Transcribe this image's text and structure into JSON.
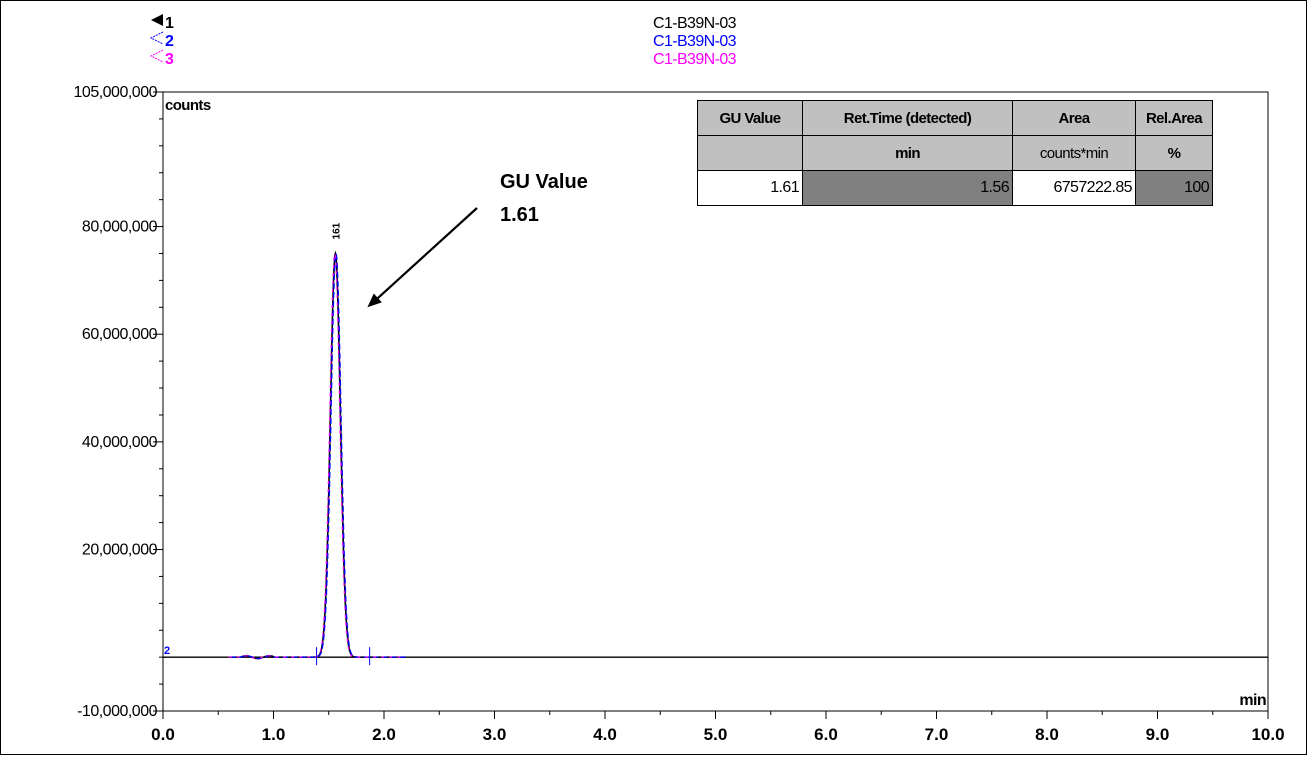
{
  "chart_data": {
    "type": "line",
    "x_unit": "min",
    "y_unit": "counts",
    "xlim": [
      0.0,
      10.0
    ],
    "ylim": [
      -10000000,
      105000000
    ],
    "x_ticks": [
      0,
      1,
      2,
      3,
      4,
      5,
      6,
      7,
      8,
      9,
      10
    ],
    "x_tick_labels": [
      "0.0",
      "1.0",
      "2.0",
      "3.0",
      "4.0",
      "5.0",
      "6.0",
      "7.0",
      "8.0",
      "9.0",
      "10.0"
    ],
    "y_ticks": [
      -10000000,
      20000000,
      40000000,
      60000000,
      80000000,
      105000000
    ],
    "y_tick_labels": [
      "-10,000,000",
      "20,000,000",
      "40,000,000",
      "60,000,000",
      "80,000,000",
      "105,000,000"
    ],
    "grid": false,
    "legend": [
      {
        "marker": "1",
        "name": "C1-B39N-03",
        "color": "#000000"
      },
      {
        "marker": "2",
        "name": "C1-B39N-03",
        "color": "#0000ff"
      },
      {
        "marker": "3",
        "name": "C1-B39N-03",
        "color": "#ff00ff"
      }
    ],
    "peak": {
      "x": 1.56,
      "y": 75000000,
      "label": "161",
      "start": 1.39,
      "end": 1.87
    },
    "baseline_y": 0,
    "annotation": {
      "line1": "GU Value",
      "line2": "1.61",
      "target_x": 1.85,
      "target_y": 65000000
    },
    "small_labels": [
      "2"
    ]
  },
  "table": {
    "headers": [
      "GU Value",
      "Ret.Time (detected)",
      "Area",
      "Rel.Area"
    ],
    "units": [
      "",
      "min",
      "counts*min",
      "%"
    ],
    "row": [
      "1.61",
      "1.56",
      "6757222.85",
      "100"
    ]
  },
  "colors": {
    "trace1": "#000000",
    "trace2": "#0000ff",
    "trace3": "#ff00ff",
    "header_bg": "#c0c0c0",
    "value_bg": "#808080"
  }
}
